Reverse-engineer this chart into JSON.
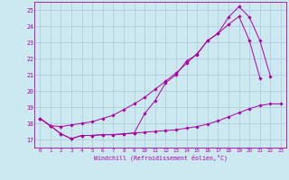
{
  "bg_color": "#cce8f0",
  "grid_color": "#b0c8d8",
  "line_color": "#aa00aa",
  "xlabel": "Windchill (Refroidissement éolien,°C)",
  "xlim": [
    -0.5,
    23.5
  ],
  "ylim": [
    16.5,
    25.5
  ],
  "yticks": [
    17,
    18,
    19,
    20,
    21,
    22,
    23,
    24,
    25
  ],
  "xticks": [
    0,
    1,
    2,
    3,
    4,
    5,
    6,
    7,
    8,
    9,
    10,
    11,
    12,
    13,
    14,
    15,
    16,
    17,
    18,
    19,
    20,
    21,
    22,
    23
  ],
  "line1_x": [
    0,
    1,
    2,
    3,
    4,
    5,
    6,
    7,
    8,
    9,
    10,
    11,
    12,
    13,
    14,
    15,
    16,
    17,
    18,
    19,
    20,
    21,
    22,
    23
  ],
  "line1_y": [
    18.3,
    17.85,
    17.35,
    17.05,
    17.25,
    17.25,
    17.3,
    17.3,
    17.35,
    17.4,
    17.45,
    17.5,
    17.55,
    17.6,
    17.7,
    17.8,
    17.95,
    18.15,
    18.4,
    18.65,
    18.9,
    19.1,
    19.2,
    19.2
  ],
  "line2_x": [
    0,
    1,
    2,
    3,
    4,
    5,
    6,
    7,
    8,
    9,
    10,
    11,
    12,
    13,
    14,
    15,
    16,
    17,
    18,
    19,
    20,
    21,
    22,
    23
  ],
  "line2_y": [
    18.3,
    17.85,
    17.8,
    17.9,
    18.0,
    18.1,
    18.3,
    18.5,
    18.85,
    19.2,
    19.6,
    20.1,
    20.6,
    21.1,
    21.7,
    22.3,
    23.1,
    23.55,
    24.1,
    24.6,
    23.1,
    20.8,
    null,
    null
  ],
  "line3_x": [
    0,
    1,
    2,
    3,
    4,
    5,
    6,
    7,
    8,
    9,
    10,
    11,
    12,
    13,
    14,
    15,
    16,
    17,
    18,
    19,
    20,
    21,
    22,
    23
  ],
  "line3_y": [
    18.3,
    17.85,
    17.35,
    17.05,
    17.25,
    17.25,
    17.3,
    17.3,
    17.35,
    17.4,
    18.6,
    19.4,
    20.5,
    21.0,
    21.85,
    22.25,
    23.1,
    23.55,
    24.55,
    25.2,
    24.55,
    23.1,
    20.9,
    null
  ]
}
